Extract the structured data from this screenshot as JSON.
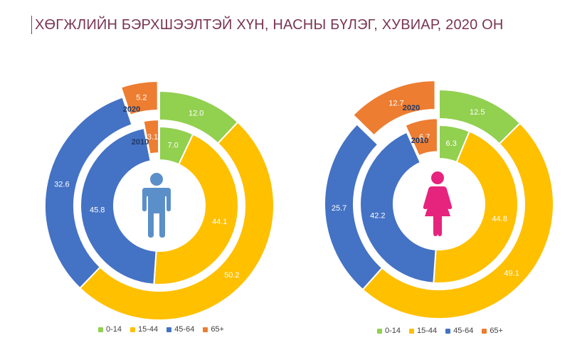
{
  "title": "ХӨГЖЛИЙН БЭРХШЭЭЛТЭЙ ХҮН,  НАСНЫ БҮЛЭГ, ХУВИАР, 2020 ОН",
  "colors": {
    "0-14": "#92d050",
    "15-44": "#ffc000",
    "45-64": "#4472c4",
    "65+": "#ed7d31",
    "male_icon": "#5b8fc9",
    "female_icon": "#e6237d"
  },
  "chart_data": [
    {
      "type": "donut",
      "icon": "male-icon",
      "categories": [
        "0-14",
        "15-44",
        "45-64",
        "65+"
      ],
      "series": [
        {
          "name": "2020",
          "values": [
            12.0,
            50.2,
            32.6,
            5.2
          ]
        },
        {
          "name": "2010",
          "values": [
            7.0,
            44.1,
            45.8,
            3.1
          ]
        }
      ],
      "value_labels": {
        "2020": [
          "12.0",
          "50.2",
          "32.6",
          "5.2"
        ],
        "2010": [
          "7.0",
          "44.1",
          "45.8",
          "3.1"
        ]
      },
      "legend": [
        "0-14",
        "15-44",
        "45-64",
        "65+"
      ]
    },
    {
      "type": "donut",
      "icon": "female-icon",
      "categories": [
        "0-14",
        "15-44",
        "45-64",
        "65+"
      ],
      "series": [
        {
          "name": "2020",
          "values": [
            12.5,
            49.1,
            25.7,
            12.7
          ]
        },
        {
          "name": "2010",
          "values": [
            6.3,
            44.8,
            42.2,
            6.7
          ]
        }
      ],
      "value_labels": {
        "2020": [
          "12.5",
          "49.1",
          "25.7",
          "12.7"
        ],
        "2010": [
          "6.3",
          "44.8",
          "42.2",
          "6.7"
        ]
      },
      "legend": [
        "0-14",
        "15-44",
        "45-64",
        "65+"
      ]
    }
  ]
}
